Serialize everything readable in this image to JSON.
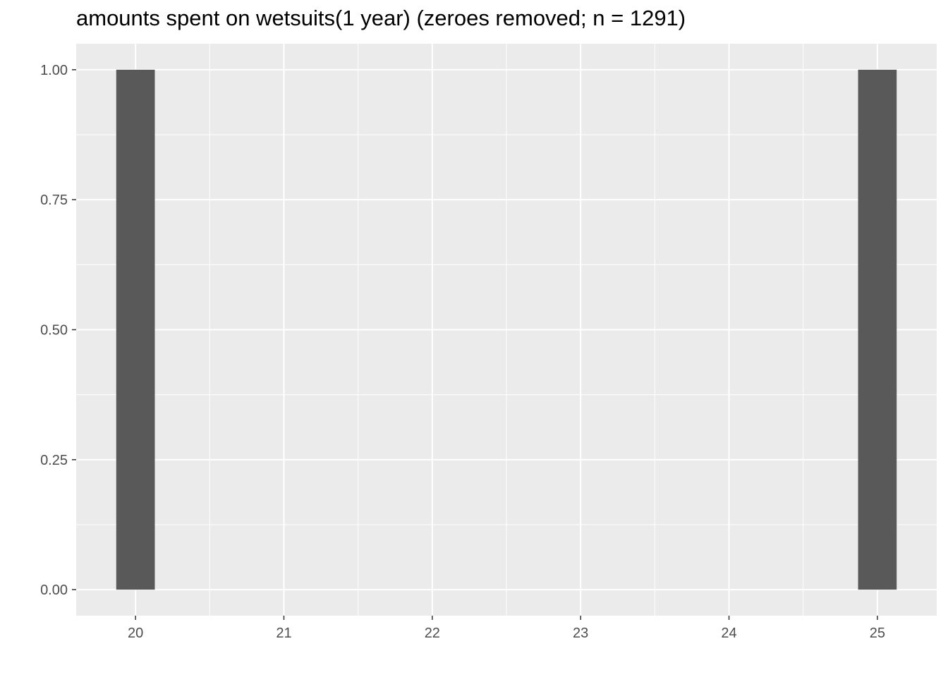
{
  "chart_data": {
    "type": "bar",
    "title": "amounts spent on wetsuits(1 year) (zeroes removed; n = 1291)",
    "xlabel": "",
    "ylabel": "",
    "x": [
      20,
      25
    ],
    "values": [
      1.0,
      1.0
    ],
    "bar_width": 0.26,
    "xlim": [
      19.6,
      25.4
    ],
    "ylim": [
      -0.05,
      1.05
    ],
    "x_ticks": [
      20,
      21,
      22,
      23,
      24,
      25
    ],
    "x_tick_labels": [
      "20",
      "21",
      "22",
      "23",
      "24",
      "25"
    ],
    "y_ticks": [
      0,
      0.25,
      0.5,
      0.75,
      1.0
    ],
    "y_tick_labels": [
      "0.00",
      "0.25",
      "0.50",
      "0.75",
      "1.00"
    ],
    "grid": true,
    "colors": {
      "panel_background": "#ebebeb",
      "grid_major": "#ffffff",
      "bar_fill": "#595959",
      "tick_text": "#4d4d4d"
    }
  }
}
